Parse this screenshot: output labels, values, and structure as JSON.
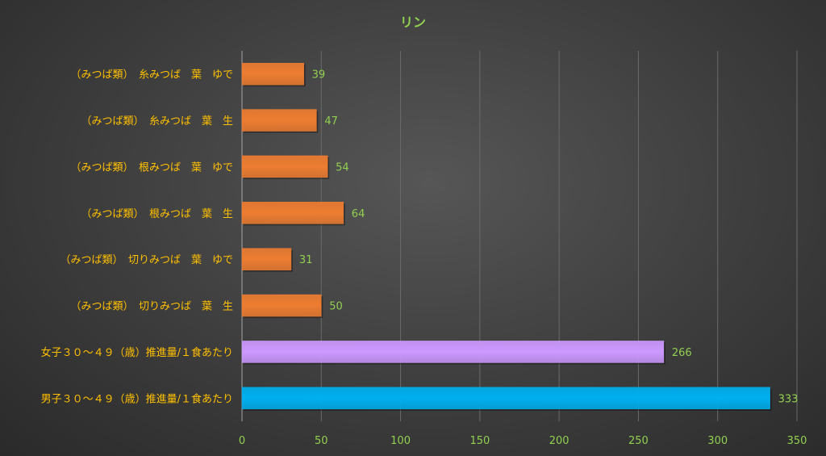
{
  "chart_data": {
    "type": "bar",
    "orientation": "horizontal",
    "title": "リン",
    "categories": [
      "（みつば類）　糸みつば　葉　ゆで",
      "（みつば類）　糸みつば　葉　生",
      "（みつば類）　根みつば　葉　ゆで",
      "（みつば類）　根みつば　葉　生",
      "（みつば類）　切りみつば　葉　ゆで",
      "（みつば類）　切りみつば　葉　生",
      "女子３０～４９（歳）推進量/１食あたり",
      "男子３０～４９（歳）推進量/１食あたり"
    ],
    "values": [
      39,
      47,
      54,
      64,
      31,
      50,
      266,
      333
    ],
    "data_labels": [
      "39",
      "47",
      "54",
      "64",
      "31",
      "50",
      "266",
      "333"
    ],
    "bar_colors": [
      "#ed7d31",
      "#ed7d31",
      "#ed7d31",
      "#ed7d31",
      "#ed7d31",
      "#ed7d31",
      "#cc99ff",
      "#00b0f0"
    ],
    "xlim": [
      0,
      350
    ],
    "x_ticks": [
      0,
      50,
      100,
      150,
      200,
      250,
      300,
      350
    ],
    "x_tick_labels": [
      "0",
      "50",
      "100",
      "150",
      "200",
      "250",
      "300",
      "350"
    ],
    "grid": true,
    "legend": "none",
    "colors": {
      "title": "#92d050",
      "category_label": "#ffc000",
      "data_label": "#92d050",
      "tick_label": "#92d050",
      "gridline": "#6a6a6a",
      "axis": "#a6a6a6"
    }
  }
}
